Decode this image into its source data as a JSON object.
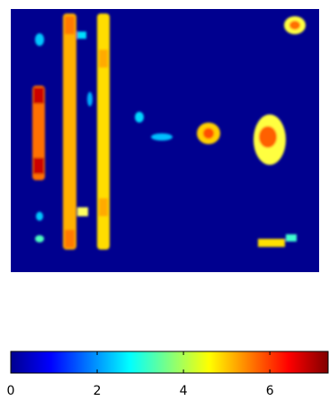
{
  "chart_data": {
    "type": "colorbar",
    "colormap": "jet",
    "xlim": [
      0,
      7.35
    ],
    "xticks": [
      0,
      2,
      4,
      6
    ]
  }
}
